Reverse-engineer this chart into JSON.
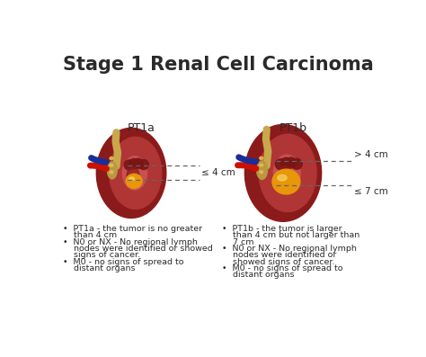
{
  "title": "Stage 1 Renal Cell Carcinoma",
  "title_fontsize": 15,
  "title_fontweight": "bold",
  "bg_color": "#ffffff",
  "label_left": "PT1a",
  "label_right": "PT1b",
  "label_fontsize": 9,
  "measure_left": "≤ 4 cm",
  "measure_right_top": "> 4 cm",
  "measure_right_bot": "≤ 7 cm",
  "measure_fontsize": 7.5,
  "bullet_left_lines": [
    "•  PT1a - the tumor is no greater",
    "    than 4 cm",
    "•  N0 or NX - No regional lymph",
    "    nodes were identified or showed",
    "    signs of cancer.",
    "•  M0 - no signs of spread to",
    "    distant organs"
  ],
  "bullet_right_lines": [
    "•  PT1b - the tumor is larger",
    "    than 4 cm but not larger than",
    "    7 cm",
    "•  N0 or NX - No regional lymph",
    "    nodes were identified or",
    "    showed signs of cancer.",
    "•  M0 - no signs of spread to",
    "    distant organs"
  ],
  "bullet_fontsize": 6.8,
  "text_color": "#2a2a2a",
  "dashed_color": "#666666",
  "kidney_outer": "#8b1a1a",
  "kidney_inner": "#b03535",
  "kidney_pelvis": "#c85050",
  "kidney_calyx": "#7a1515",
  "tumor_color": "#e8960a",
  "tumor_highlight": "#f5d060",
  "artery_color": "#cc1100",
  "vein_color": "#1a2e99",
  "ureter_color": "#c8a84a",
  "hilum_color": "#b89840",
  "vessel_tip_color": "#ddbb55"
}
